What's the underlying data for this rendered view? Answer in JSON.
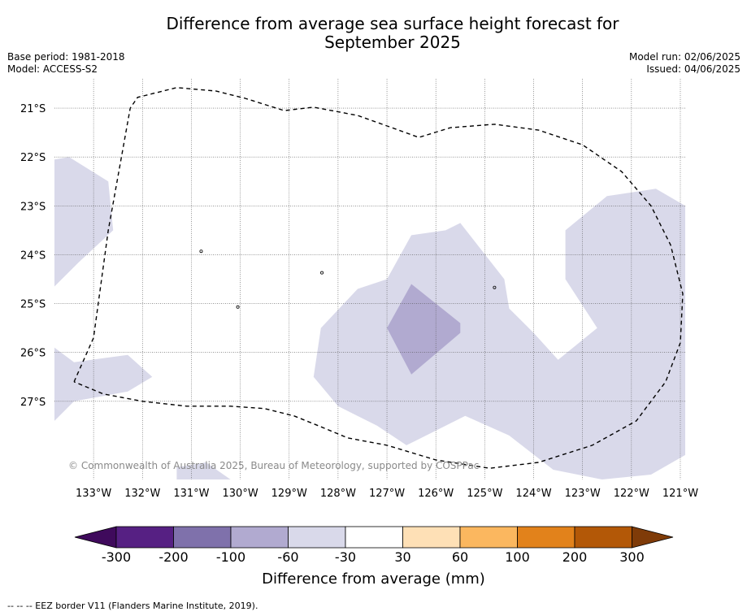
{
  "header": {
    "title_line1": "Difference from average sea surface height forecast for",
    "title_line2": "September 2025",
    "base_period": "Base period: 1981-2018",
    "model": "Model: ACCESS-S2",
    "model_run": "Model run: 02/06/2025",
    "issued": "Issued: 04/06/2025"
  },
  "copyright": "© Commonwealth of Australia 2025, Bureau of Meteorology, supported by COSPPac",
  "colorbar": {
    "label": "Difference from average (mm)",
    "ticks": [
      "-300",
      "-200",
      "-100",
      "-60",
      "-30",
      "30",
      "60",
      "100",
      "200",
      "300"
    ],
    "colors": [
      "#3f0a5c",
      "#562083",
      "#7f71ab",
      "#b1aad0",
      "#d9d9ea",
      "#ffffff",
      "#fee0b6",
      "#fbb75f",
      "#e2821b",
      "#b35807",
      "#7f3b08"
    ]
  },
  "footer": {
    "legend": "-- -- -- EEZ border V11 (Flanders Marine Institute, 2019)."
  },
  "chart_data": {
    "type": "heatmap",
    "projection": "lon-lat",
    "xlim": [
      -133.8,
      -120.9
    ],
    "ylim": [
      -28.6,
      -20.4
    ],
    "lon_ticks": [
      -133,
      -132,
      -131,
      -130,
      -129,
      -128,
      -127,
      -126,
      -125,
      -124,
      -123,
      -122,
      -121
    ],
    "lon_labels": [
      "133°W",
      "132°W",
      "131°W",
      "130°W",
      "129°W",
      "128°W",
      "127°W",
      "126°W",
      "125°W",
      "124°W",
      "123°W",
      "122°W",
      "121°W"
    ],
    "lat_ticks": [
      -21,
      -22,
      -23,
      -24,
      -25,
      -26,
      -27
    ],
    "lat_labels": [
      "21°S",
      "22°S",
      "23°S",
      "24°S",
      "25°S",
      "26°S",
      "27°S"
    ],
    "grid": true,
    "regions": [
      {
        "range": "-60 to -30",
        "color": "#d9d9ea",
        "points": [
          [
            -133.8,
            -22.05
          ],
          [
            -133.5,
            -22.0
          ],
          [
            -132.7,
            -22.5
          ],
          [
            -132.6,
            -23.5
          ],
          [
            -133.3,
            -24.15
          ],
          [
            -133.8,
            -24.65
          ]
        ]
      },
      {
        "range": "-60 to -30",
        "color": "#d9d9ea",
        "points": [
          [
            -133.8,
            -25.9
          ],
          [
            -133.4,
            -26.2
          ],
          [
            -132.3,
            -26.05
          ],
          [
            -131.8,
            -26.5
          ],
          [
            -132.3,
            -26.8
          ],
          [
            -133.4,
            -27.0
          ],
          [
            -133.8,
            -27.4
          ]
        ]
      },
      {
        "range": "-60 to -30",
        "color": "#d9d9ea",
        "points": [
          [
            -127.0,
            -24.5
          ],
          [
            -126.5,
            -23.6
          ],
          [
            -125.8,
            -23.5
          ],
          [
            -125.5,
            -23.35
          ],
          [
            -124.6,
            -24.5
          ],
          [
            -124.5,
            -25.1
          ],
          [
            -124.0,
            -25.6
          ],
          [
            -123.5,
            -26.15
          ],
          [
            -122.7,
            -25.5
          ],
          [
            -123.35,
            -24.5
          ],
          [
            -123.35,
            -23.5
          ],
          [
            -122.5,
            -22.8
          ],
          [
            -121.5,
            -22.65
          ],
          [
            -120.9,
            -23.0
          ],
          [
            -120.9,
            -28.1
          ],
          [
            -121.6,
            -28.5
          ],
          [
            -122.6,
            -28.6
          ],
          [
            -123.6,
            -28.4
          ],
          [
            -124.5,
            -27.7
          ],
          [
            -125.4,
            -27.3
          ],
          [
            -126.0,
            -27.6
          ],
          [
            -126.6,
            -27.9
          ],
          [
            -127.2,
            -27.5
          ],
          [
            -128.0,
            -27.1
          ],
          [
            -128.5,
            -26.5
          ],
          [
            -128.35,
            -25.5
          ],
          [
            -127.6,
            -24.7
          ]
        ]
      },
      {
        "range": "-100 to -60",
        "color": "#b1aad0",
        "points": [
          [
            -126.5,
            -24.6
          ],
          [
            -127.0,
            -25.5
          ],
          [
            -126.5,
            -26.45
          ],
          [
            -125.5,
            -25.6
          ],
          [
            -125.5,
            -25.4
          ]
        ]
      },
      {
        "range": "-60 to -30",
        "color": "#d9d9ea",
        "points": [
          [
            -131.3,
            -28.35
          ],
          [
            -130.7,
            -28.25
          ],
          [
            -130.2,
            -28.6
          ],
          [
            -131.3,
            -28.6
          ]
        ]
      }
    ],
    "islands": [
      [
        -130.8,
        -23.93
      ],
      [
        -128.33,
        -24.37
      ],
      [
        -124.8,
        -24.67
      ],
      [
        -130.05,
        -25.07
      ]
    ],
    "eez_border": [
      [
        -133.4,
        -26.6
      ],
      [
        -133.0,
        -25.7
      ],
      [
        -132.7,
        -23.5
      ],
      [
        -132.25,
        -21.0
      ],
      [
        -132.1,
        -20.78
      ],
      [
        -131.3,
        -20.58
      ],
      [
        -130.5,
        -20.65
      ],
      [
        -129.9,
        -20.8
      ],
      [
        -129.1,
        -21.05
      ],
      [
        -128.5,
        -20.98
      ],
      [
        -127.6,
        -21.15
      ],
      [
        -126.9,
        -21.4
      ],
      [
        -126.35,
        -21.6
      ],
      [
        -125.7,
        -21.4
      ],
      [
        -124.8,
        -21.33
      ],
      [
        -123.9,
        -21.45
      ],
      [
        -123.0,
        -21.75
      ],
      [
        -122.2,
        -22.3
      ],
      [
        -121.6,
        -23.0
      ],
      [
        -121.2,
        -23.8
      ],
      [
        -120.95,
        -24.8
      ],
      [
        -121.0,
        -25.8
      ],
      [
        -121.3,
        -26.6
      ],
      [
        -121.9,
        -27.4
      ],
      [
        -122.8,
        -27.9
      ],
      [
        -123.9,
        -28.25
      ],
      [
        -124.9,
        -28.37
      ],
      [
        -126.0,
        -28.2
      ],
      [
        -127.0,
        -27.9
      ],
      [
        -127.8,
        -27.75
      ],
      [
        -128.4,
        -27.5
      ],
      [
        -128.9,
        -27.3
      ],
      [
        -129.5,
        -27.15
      ],
      [
        -130.2,
        -27.1
      ],
      [
        -131.1,
        -27.1
      ],
      [
        -132.0,
        -27.0
      ],
      [
        -132.8,
        -26.85
      ],
      [
        -133.4,
        -26.6
      ]
    ]
  }
}
